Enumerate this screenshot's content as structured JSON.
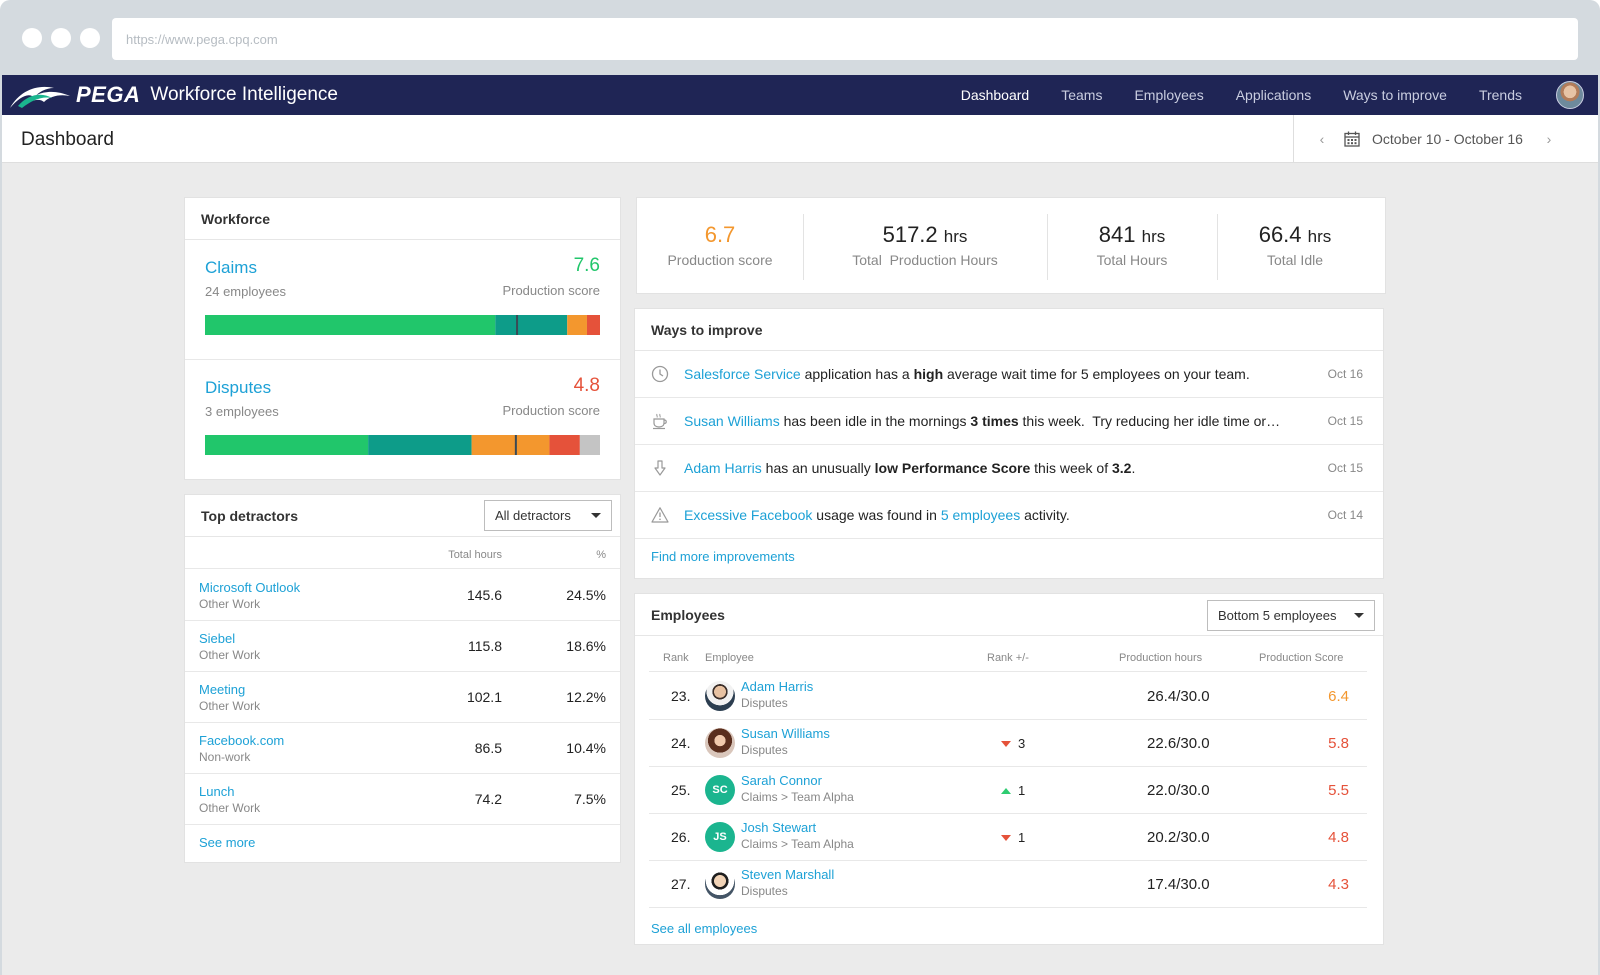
{
  "browser": {
    "url": "https://www.pega.cpq.com"
  },
  "brand": {
    "logo_text": "PEGA",
    "product": "Workforce Intelligence"
  },
  "nav": [
    "Dashboard",
    "Teams",
    "Employees",
    "Applications",
    "Ways to improve",
    "Trends"
  ],
  "header": {
    "title": "Dashboard",
    "date_range": "October 10 - October 16"
  },
  "colors": {
    "accent_link": "#1da1d6",
    "navy": "#1f2555",
    "green": "#21c66b",
    "teal": "#0d9c89",
    "orange": "#f3972e",
    "red": "#e5523a",
    "gray": "#c4c4c4"
  },
  "workforce": {
    "title": "Workforce",
    "teams": [
      {
        "name": "Claims",
        "employees": "24 employees",
        "score": "7.6",
        "score_label": "Production score",
        "score_color": "#21c66b",
        "segments": [
          0.735,
          0.182,
          0.05,
          0.033,
          0.0
        ],
        "marker": 0.79
      },
      {
        "name": "Disputes",
        "employees": "3 employees",
        "score": "4.8",
        "score_label": "Production score",
        "score_color": "#e5523a",
        "segments": [
          0.413,
          0.262,
          0.197,
          0.077,
          0.051
        ],
        "marker": 0.787
      }
    ]
  },
  "kpis": [
    {
      "value": "6.7",
      "unit": "",
      "label": "Production score",
      "color": "#f3972e"
    },
    {
      "value": "517.2",
      "unit": "hrs",
      "label": "Total  Production Hours",
      "color": "#222222"
    },
    {
      "value": "841",
      "unit": "hrs",
      "label": "Total Hours",
      "color": "#222222"
    },
    {
      "value": "66.4",
      "unit": "hrs",
      "label": "Total Idle",
      "color": "#222222"
    }
  ],
  "ways": {
    "title": "Ways to improve",
    "items": [
      {
        "icon": "clock-icon",
        "date": "Oct 16",
        "parts": [
          [
            "link",
            "Salesforce Service"
          ],
          [
            "text",
            " application has a "
          ],
          [
            "bold",
            "high"
          ],
          [
            "text",
            " average wait time for 5 employees on your team."
          ]
        ]
      },
      {
        "icon": "coffee-cup-icon",
        "date": "Oct 15",
        "parts": [
          [
            "link",
            "Susan Williams"
          ],
          [
            "text",
            " has been idle in the mornings "
          ],
          [
            "bold",
            "3 times"
          ],
          [
            "text",
            " this week.  Try reducing her idle time or…"
          ]
        ]
      },
      {
        "icon": "thumbs-down-icon",
        "date": "Oct 15",
        "parts": [
          [
            "link",
            "Adam Harris"
          ],
          [
            "text",
            " has an unusually "
          ],
          [
            "bold",
            "low Performance Score"
          ],
          [
            "text",
            " this week of "
          ],
          [
            "bold",
            "3.2"
          ],
          [
            "text",
            "."
          ]
        ]
      },
      {
        "icon": "warning-icon",
        "date": "Oct 14",
        "parts": [
          [
            "link",
            "Excessive Facebook"
          ],
          [
            "text",
            " usage was found in "
          ],
          [
            "link",
            "5 employees"
          ],
          [
            "text",
            " activity."
          ]
        ]
      }
    ],
    "more": "Find more improvements"
  },
  "detractors": {
    "title": "Top detractors",
    "filter": "All detractors",
    "headers": {
      "hours": "Total hours",
      "pct": "%"
    },
    "rows": [
      {
        "name": "Microsoft Outlook",
        "category": "Other Work",
        "hours": "145.6",
        "pct": "24.5%"
      },
      {
        "name": "Siebel",
        "category": "Other Work",
        "hours": "115.8",
        "pct": "18.6%"
      },
      {
        "name": "Meeting",
        "category": "Other Work",
        "hours": "102.1",
        "pct": "12.2%"
      },
      {
        "name": "Facebook.com",
        "category": "Non-work",
        "hours": "86.5",
        "pct": "10.4%"
      },
      {
        "name": "Lunch",
        "category": "Other Work",
        "hours": "74.2",
        "pct": "7.5%"
      }
    ],
    "more": "See more"
  },
  "employees": {
    "title": "Employees",
    "filter": "Bottom 5 employees",
    "headers": {
      "rank": "Rank",
      "employee": "Employee",
      "delta": "Rank +/-",
      "hours": "Production hours",
      "score": "Production Score"
    },
    "rows": [
      {
        "rank": "23.",
        "name": "Adam Harris",
        "team": "Disputes",
        "avatar": "photo",
        "initials": "",
        "delta_dir": "",
        "delta": "",
        "hours": "26.4/30.0",
        "score": "6.4",
        "score_color": "#f3972e"
      },
      {
        "rank": "24.",
        "name": "Susan Williams",
        "team": "Disputes",
        "avatar": "photo",
        "initials": "",
        "delta_dir": "down",
        "delta": "3",
        "hours": "22.6/30.0",
        "score": "5.8",
        "score_color": "#e5523a"
      },
      {
        "rank": "25.",
        "name": "Sarah Connor",
        "team": "Claims > Team Alpha",
        "avatar": "initials",
        "initials": "SC",
        "delta_dir": "up",
        "delta": "1",
        "hours": "22.0/30.0",
        "score": "5.5",
        "score_color": "#e5523a"
      },
      {
        "rank": "26.",
        "name": "Josh Stewart",
        "team": "Claims > Team Alpha",
        "avatar": "initials",
        "initials": "JS",
        "delta_dir": "down",
        "delta": "1",
        "hours": "20.2/30.0",
        "score": "4.8",
        "score_color": "#e5523a"
      },
      {
        "rank": "27.",
        "name": "Steven Marshall",
        "team": "Disputes",
        "avatar": "photo",
        "initials": "",
        "delta_dir": "",
        "delta": "",
        "hours": "17.4/30.0",
        "score": "4.3",
        "score_color": "#e5523a"
      }
    ],
    "more": "See all employees"
  }
}
